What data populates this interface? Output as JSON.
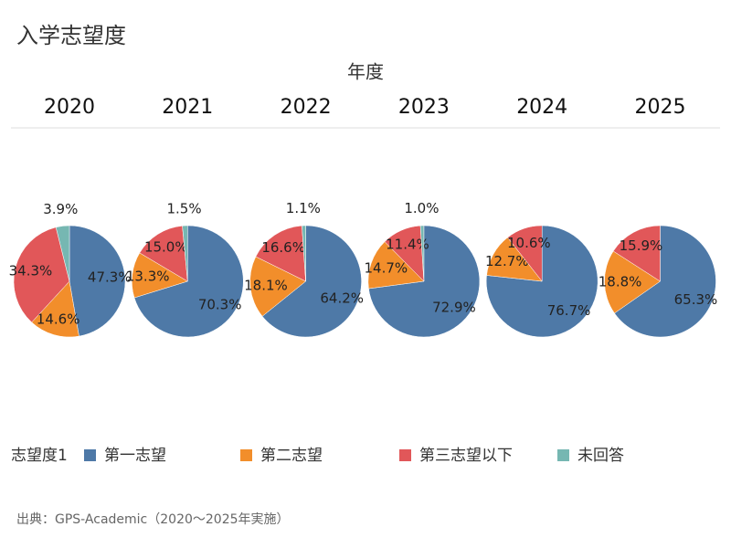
{
  "title": "入学志望度",
  "column_header": "年度",
  "legend_title": "志望度1",
  "source": "出典：GPS-Academic（2020～2025年実施）",
  "chart_data": [
    {
      "type": "pie",
      "title": "2020",
      "categories": [
        "第一志望",
        "第二志望",
        "第三志望以下",
        "未回答"
      ],
      "colors": [
        "#4e79a7",
        "#f28e2b",
        "#e15759",
        "#76b7b2"
      ],
      "values": [
        47.3,
        14.6,
        34.3,
        3.9
      ],
      "value_labels": [
        "47.3%",
        "14.6%",
        "34.3%",
        "3.9%"
      ]
    },
    {
      "type": "pie",
      "title": "2021",
      "categories": [
        "第一志望",
        "第二志望",
        "第三志望以下",
        "未回答"
      ],
      "colors": [
        "#4e79a7",
        "#f28e2b",
        "#e15759",
        "#76b7b2"
      ],
      "values": [
        70.3,
        13.3,
        15.0,
        1.5
      ],
      "value_labels": [
        "70.3%",
        "13.3%",
        "15.0%",
        "1.5%"
      ]
    },
    {
      "type": "pie",
      "title": "2022",
      "categories": [
        "第一志望",
        "第二志望",
        "第三志望以下",
        "未回答"
      ],
      "colors": [
        "#4e79a7",
        "#f28e2b",
        "#e15759",
        "#76b7b2"
      ],
      "values": [
        64.2,
        18.1,
        16.6,
        1.1
      ],
      "value_labels": [
        "64.2%",
        "18.1%",
        "16.6%",
        "1.1%"
      ]
    },
    {
      "type": "pie",
      "title": "2023",
      "categories": [
        "第一志望",
        "第二志望",
        "第三志望以下",
        "未回答"
      ],
      "colors": [
        "#4e79a7",
        "#f28e2b",
        "#e15759",
        "#76b7b2"
      ],
      "values": [
        72.9,
        14.7,
        11.4,
        1.0
      ],
      "value_labels": [
        "72.9%",
        "14.7%",
        "11.4%",
        "1.0%"
      ]
    },
    {
      "type": "pie",
      "title": "2024",
      "categories": [
        "第一志望",
        "第二志望",
        "第三志望以下",
        "未回答"
      ],
      "colors": [
        "#4e79a7",
        "#f28e2b",
        "#e15759",
        "#76b7b2"
      ],
      "values": [
        76.7,
        12.7,
        10.6,
        null
      ],
      "value_labels": [
        "76.7%",
        "12.7%",
        "10.6%",
        null
      ]
    },
    {
      "type": "pie",
      "title": "2025",
      "categories": [
        "第一志望",
        "第二志望",
        "第三志望以下",
        "未回答"
      ],
      "colors": [
        "#4e79a7",
        "#f28e2b",
        "#e15759",
        "#76b7b2"
      ],
      "values": [
        65.3,
        18.8,
        15.9,
        null
      ],
      "value_labels": [
        "65.3%",
        "18.8%",
        "15.9%",
        null
      ]
    }
  ]
}
